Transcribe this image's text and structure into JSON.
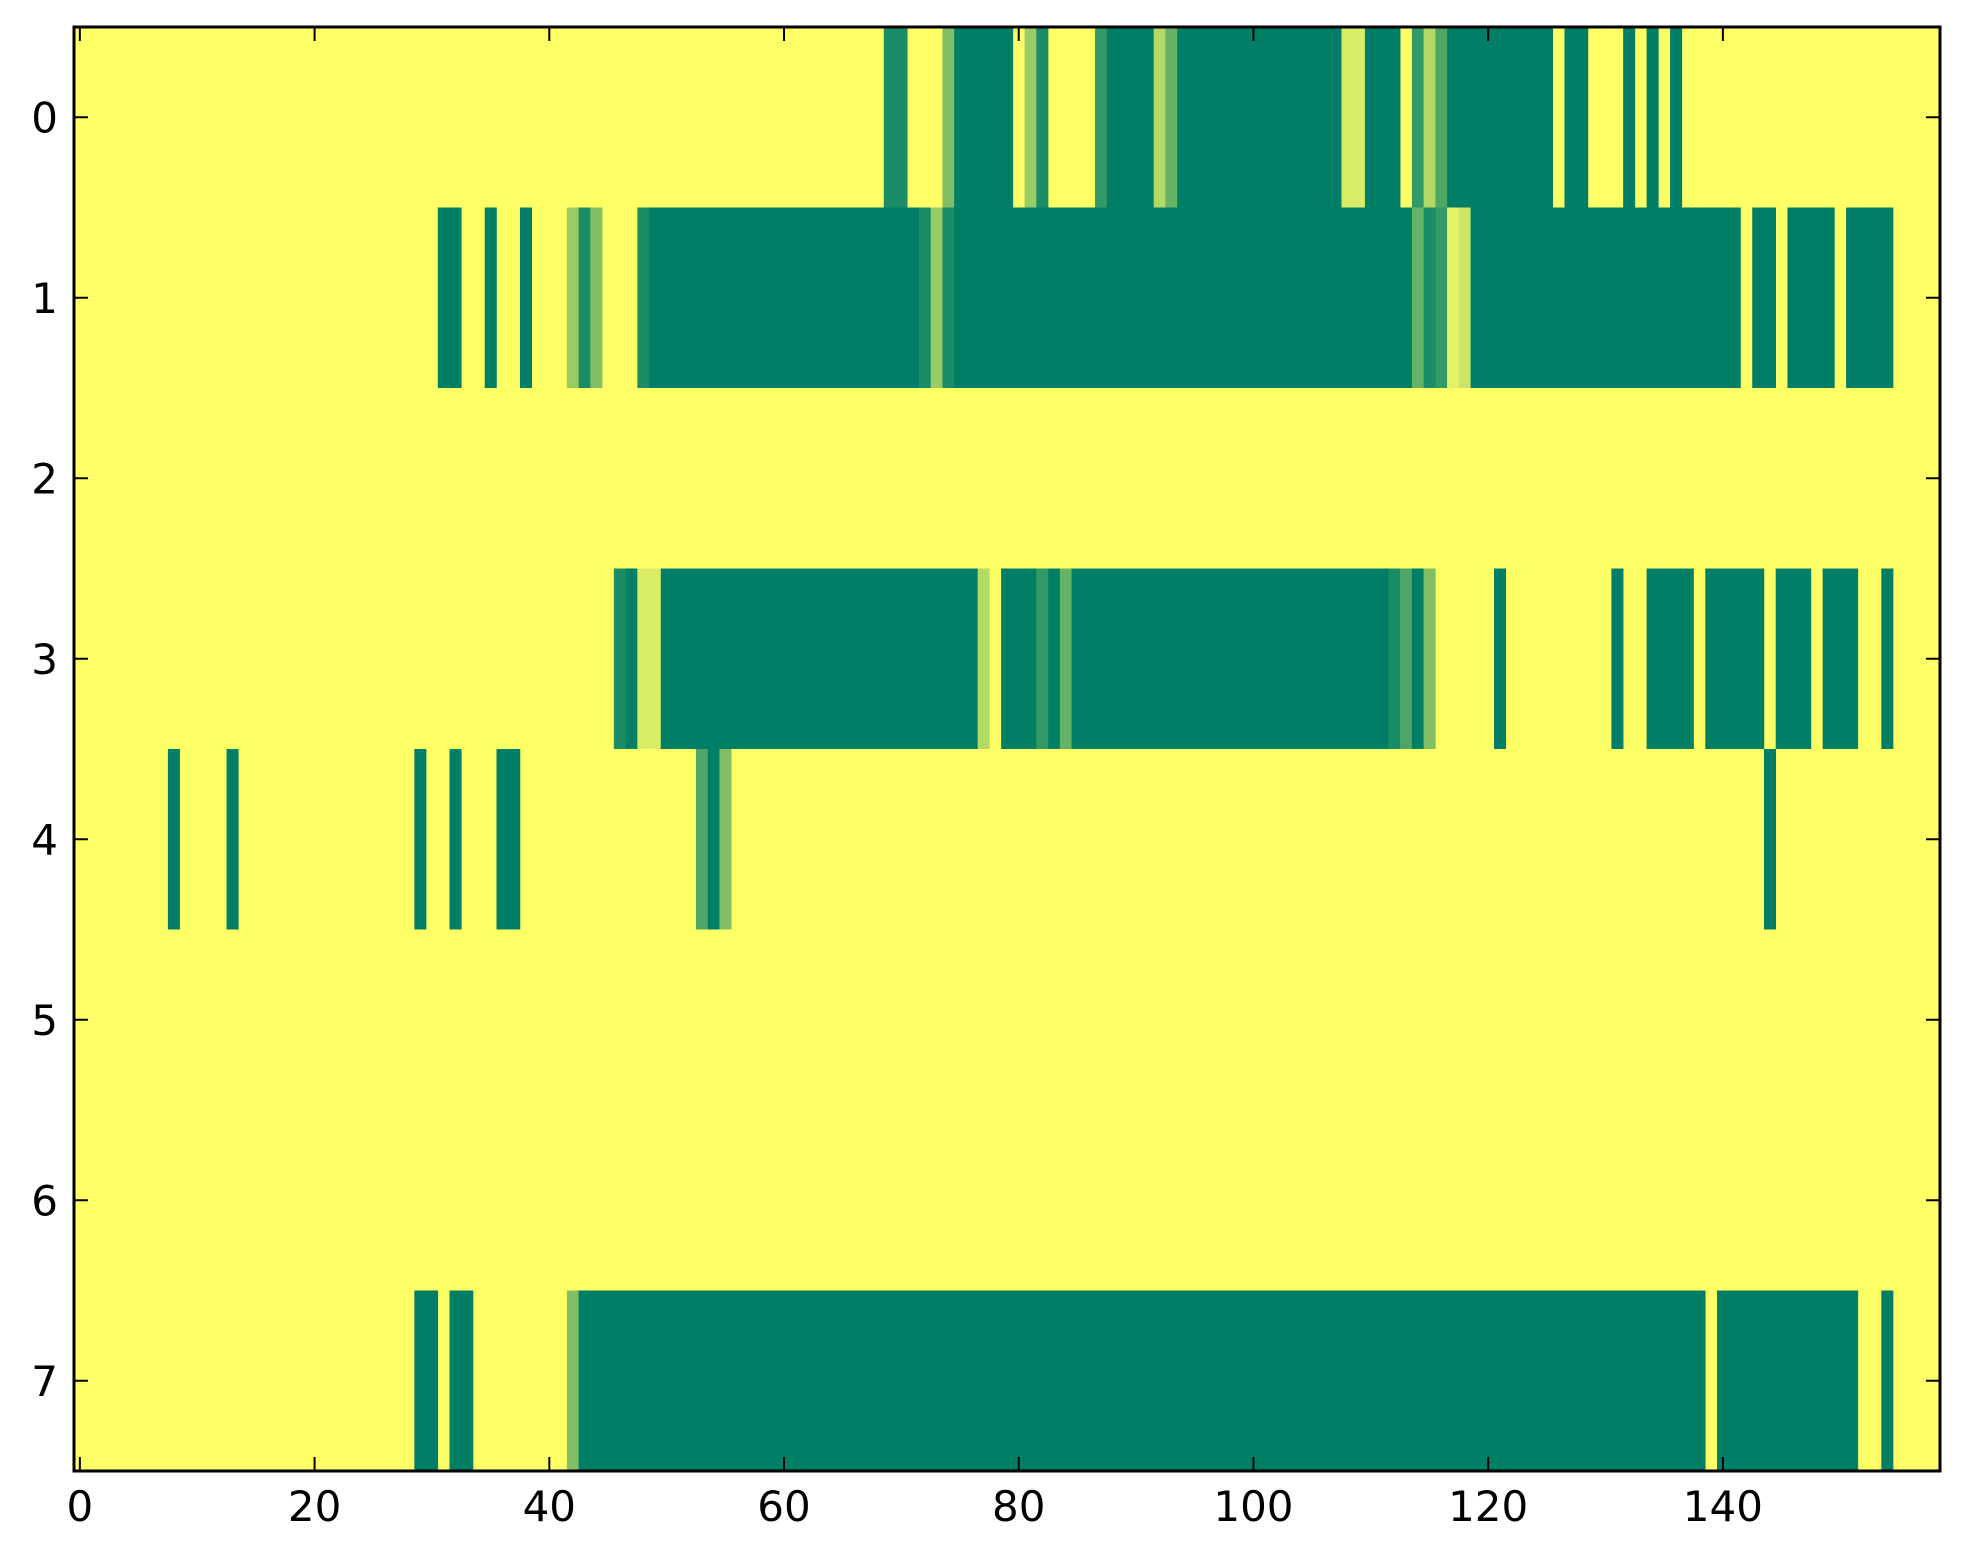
{
  "chart_data": {
    "type": "heatmap",
    "colormap": "summer_r",
    "colors": {
      "high": "#007f66",
      "low": "#ffff66",
      "axes": "#000000",
      "background": "#ffffff"
    },
    "xlim": [
      -0.5,
      158.5
    ],
    "ylim": [
      7.5,
      -0.5
    ],
    "x_ticks": [
      0,
      20,
      40,
      60,
      80,
      100,
      120,
      140
    ],
    "y_ticks": [
      0,
      1,
      2,
      3,
      4,
      5,
      6,
      7
    ],
    "n_columns": 156,
    "rows": [
      {
        "row": 0,
        "runs": [
          [
            69,
            70,
            0.9
          ],
          [
            71,
            73,
            0.0
          ],
          [
            74,
            74,
            0.5
          ],
          [
            75,
            79,
            1.0
          ],
          [
            80,
            80,
            0.0
          ],
          [
            81,
            81,
            0.4
          ],
          [
            82,
            82,
            0.9
          ],
          [
            83,
            83,
            0.0
          ],
          [
            84,
            86,
            0.0
          ],
          [
            87,
            87,
            0.8
          ],
          [
            88,
            91,
            1.0
          ],
          [
            92,
            92,
            0.3
          ],
          [
            93,
            93,
            0.6
          ],
          [
            94,
            107,
            1.0
          ],
          [
            108,
            109,
            0.15
          ],
          [
            110,
            112,
            1.0
          ],
          [
            113,
            113,
            0.0
          ],
          [
            114,
            114,
            0.8
          ],
          [
            115,
            115,
            0.3
          ],
          [
            116,
            116,
            0.7
          ],
          [
            117,
            125,
            1.0
          ],
          [
            126,
            126,
            0.0
          ],
          [
            127,
            128,
            1.0
          ],
          [
            132,
            132,
            1.0
          ],
          [
            134,
            134,
            1.0
          ],
          [
            136,
            136,
            1.0
          ]
        ]
      },
      {
        "row": 1,
        "runs": [
          [
            31,
            32,
            1.0
          ],
          [
            35,
            35,
            1.0
          ],
          [
            38,
            38,
            1.0
          ],
          [
            42,
            42,
            0.4
          ],
          [
            43,
            43,
            0.9
          ],
          [
            44,
            44,
            0.5
          ],
          [
            48,
            48,
            0.9
          ],
          [
            49,
            71,
            1.0
          ],
          [
            72,
            72,
            0.9
          ],
          [
            73,
            73,
            0.4
          ],
          [
            74,
            74,
            0.9
          ],
          [
            75,
            113,
            1.0
          ],
          [
            114,
            114,
            0.6
          ],
          [
            115,
            115,
            0.9
          ],
          [
            116,
            116,
            0.8
          ],
          [
            117,
            117,
            0.1
          ],
          [
            118,
            118,
            0.2
          ],
          [
            119,
            140,
            1.0
          ],
          [
            141,
            141,
            1.0
          ],
          [
            143,
            144,
            1.0
          ],
          [
            146,
            149,
            1.0
          ],
          [
            151,
            154,
            1.0
          ]
        ]
      },
      {
        "row": 2,
        "runs": []
      },
      {
        "row": 3,
        "runs": [
          [
            46,
            46,
            0.9
          ],
          [
            47,
            47,
            1.0
          ],
          [
            48,
            49,
            0.15
          ],
          [
            50,
            76,
            1.0
          ],
          [
            77,
            77,
            0.3
          ],
          [
            79,
            81,
            1.0
          ],
          [
            82,
            82,
            0.8
          ],
          [
            83,
            83,
            1.0
          ],
          [
            84,
            84,
            0.6
          ],
          [
            85,
            111,
            1.0
          ],
          [
            112,
            112,
            0.9
          ],
          [
            113,
            113,
            0.7
          ],
          [
            114,
            114,
            1.0
          ],
          [
            115,
            115,
            0.5
          ],
          [
            121,
            121,
            1.0
          ],
          [
            131,
            131,
            1.0
          ],
          [
            134,
            137,
            1.0
          ],
          [
            139,
            143,
            1.0
          ],
          [
            145,
            147,
            1.0
          ],
          [
            149,
            151,
            1.0
          ],
          [
            154,
            154,
            1.0
          ]
        ]
      },
      {
        "row": 4,
        "runs": [
          [
            8,
            8,
            1.0
          ],
          [
            13,
            13,
            1.0
          ],
          [
            29,
            29,
            1.0
          ],
          [
            32,
            32,
            1.0
          ],
          [
            36,
            37,
            1.0
          ],
          [
            53,
            53,
            0.7
          ],
          [
            54,
            54,
            1.0
          ],
          [
            55,
            55,
            0.5
          ],
          [
            144,
            144,
            1.0
          ]
        ]
      },
      {
        "row": 5,
        "runs": []
      },
      {
        "row": 6,
        "runs": []
      },
      {
        "row": 7,
        "runs": [
          [
            29,
            30,
            1.0
          ],
          [
            32,
            33,
            1.0
          ],
          [
            42,
            42,
            0.5
          ],
          [
            43,
            138,
            1.0
          ],
          [
            140,
            151,
            1.0
          ],
          [
            154,
            154,
            1.0
          ]
        ]
      }
    ]
  }
}
